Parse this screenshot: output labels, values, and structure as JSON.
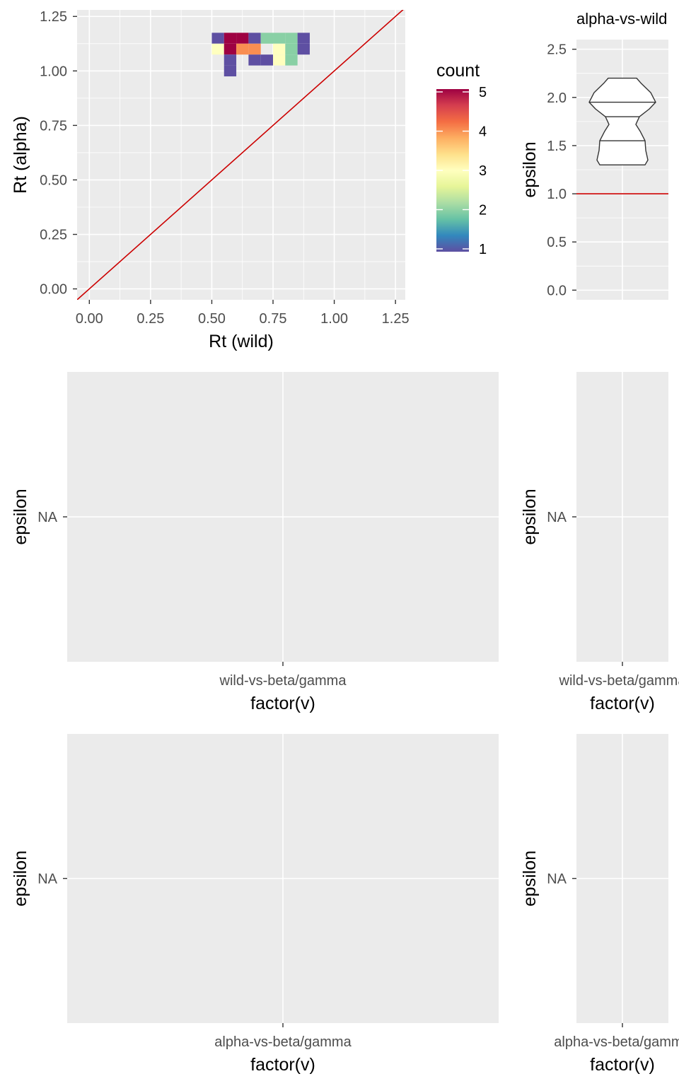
{
  "chart_data": [
    {
      "type": "heatmap",
      "xlabel": "Rt (wild)",
      "ylabel": "Rt (alpha)",
      "xlim": [
        -0.05,
        1.29
      ],
      "ylim": [
        -0.05,
        1.28
      ],
      "xticks": [
        "0.00",
        "0.25",
        "0.50",
        "0.75",
        "1.00",
        "1.25"
      ],
      "yticks": [
        "0.00",
        "0.25",
        "0.50",
        "0.75",
        "1.00",
        "1.25"
      ],
      "bin_width": 0.05,
      "bin_height": 0.05,
      "bins": [
        {
          "x": 0.525,
          "y": 1.15,
          "count": 1
        },
        {
          "x": 0.575,
          "y": 1.15,
          "count": 5
        },
        {
          "x": 0.625,
          "y": 1.15,
          "count": 5
        },
        {
          "x": 0.675,
          "y": 1.15,
          "count": 1
        },
        {
          "x": 0.725,
          "y": 1.15,
          "count": 2
        },
        {
          "x": 0.775,
          "y": 1.15,
          "count": 2
        },
        {
          "x": 0.825,
          "y": 1.15,
          "count": 2
        },
        {
          "x": 0.875,
          "y": 1.15,
          "count": 1
        },
        {
          "x": 0.525,
          "y": 1.1,
          "count": 3
        },
        {
          "x": 0.575,
          "y": 1.1,
          "count": 5
        },
        {
          "x": 0.625,
          "y": 1.1,
          "count": 4
        },
        {
          "x": 0.675,
          "y": 1.1,
          "count": 4
        },
        {
          "x": 0.775,
          "y": 1.1,
          "count": 3
        },
        {
          "x": 0.825,
          "y": 1.1,
          "count": 2
        },
        {
          "x": 0.875,
          "y": 1.1,
          "count": 1
        },
        {
          "x": 0.575,
          "y": 1.05,
          "count": 1
        },
        {
          "x": 0.675,
          "y": 1.05,
          "count": 1
        },
        {
          "x": 0.725,
          "y": 1.05,
          "count": 1
        },
        {
          "x": 0.775,
          "y": 1.05,
          "count": 3
        },
        {
          "x": 0.825,
          "y": 1.05,
          "count": 2
        },
        {
          "x": 0.575,
          "y": 1.0,
          "count": 1
        }
      ],
      "reference_line": {
        "slope": 1,
        "intercept": 0,
        "color": "#cc0000"
      },
      "legend": {
        "title": "count",
        "range": [
          1,
          5
        ],
        "ticks": [
          "1",
          "2",
          "3",
          "4",
          "5"
        ],
        "placement": "right",
        "colors": [
          "#5e4fa2",
          "#3288bd",
          "#66c2a5",
          "#abdda4",
          "#e6f598",
          "#ffffbf",
          "#fee08b",
          "#fdae61",
          "#f46d43",
          "#d53e4f",
          "#9e0142"
        ]
      }
    },
    {
      "type": "violin",
      "title": "alpha-vs-wild",
      "ylabel": "epsilon",
      "ylim": [
        -0.1,
        2.6
      ],
      "yticks": [
        "0.0",
        "0.5",
        "1.0",
        "1.5",
        "2.0",
        "2.5"
      ],
      "range": [
        1.3,
        2.2
      ],
      "quantiles": [
        1.55,
        1.8,
        1.95
      ],
      "reference_line": {
        "y": 1.0,
        "color": "#cc0000"
      }
    },
    {
      "type": "violin",
      "category": "wild-vs-beta/gamma",
      "xlabel": "factor(v)",
      "ylabel": "epsilon",
      "yticks": [
        "NA"
      ]
    },
    {
      "type": "violin",
      "category": "wild-vs-beta/gamma",
      "xlabel": "factor(v)",
      "ylabel": "epsilon",
      "yticks": [
        "NA"
      ]
    },
    {
      "type": "violin",
      "category": "alpha-vs-beta/gamma",
      "xlabel": "factor(v)",
      "ylabel": "epsilon",
      "yticks": [
        "NA"
      ]
    },
    {
      "type": "violin",
      "category": "alpha-vs-beta/gamma",
      "xlabel": "factor(v)",
      "ylabel": "epsilon",
      "yticks": [
        "NA"
      ]
    }
  ]
}
